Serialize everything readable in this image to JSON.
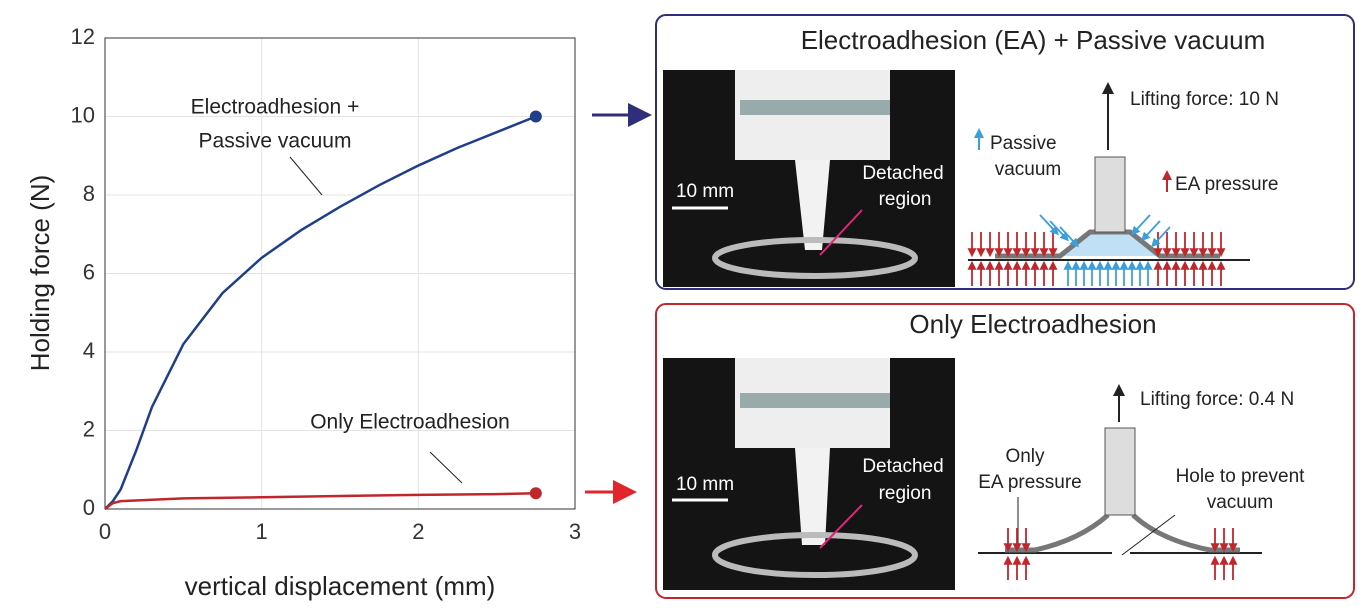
{
  "chart_data": {
    "type": "line",
    "xlabel": "vertical displacement (mm)",
    "ylabel": "Holding force (N)",
    "xlim": [
      0,
      3
    ],
    "ylim": [
      0,
      12
    ],
    "xticks": [
      0,
      1,
      2,
      3
    ],
    "yticks": [
      0,
      2,
      4,
      6,
      8,
      10,
      12
    ],
    "grid": true,
    "series": [
      {
        "name": "Electroadhesion + Passive vacuum",
        "label_lines": [
          "Electroadhesion +",
          "Passive vacuum"
        ],
        "color": "#1f3f8a",
        "x": [
          0,
          0.05,
          0.1,
          0.2,
          0.3,
          0.5,
          0.75,
          1,
          1.25,
          1.5,
          1.75,
          2,
          2.25,
          2.5,
          2.75
        ],
        "values": [
          0,
          0.2,
          0.5,
          1.5,
          2.6,
          4.2,
          5.5,
          6.4,
          7.1,
          7.7,
          8.25,
          8.75,
          9.2,
          9.6,
          10.0
        ]
      },
      {
        "name": "Only Electroadhesion",
        "label_lines": [
          "Only Electroadhesion"
        ],
        "color": "#c0272d",
        "x": [
          0,
          0.05,
          0.1,
          0.5,
          1,
          1.5,
          2,
          2.5,
          2.75
        ],
        "values": [
          0,
          0.15,
          0.2,
          0.27,
          0.3,
          0.33,
          0.36,
          0.38,
          0.4
        ]
      }
    ]
  },
  "panels": [
    {
      "title": "Electroadhesion (EA) + Passive vacuum",
      "scale": "10 mm",
      "photo_label": [
        "Detached",
        "region"
      ],
      "lifting": "Lifting force: 10 N",
      "vacuum": [
        "Passive",
        "vacuum"
      ],
      "pressure": "EA pressure"
    },
    {
      "title": "Only Electroadhesion",
      "scale": "10 mm",
      "photo_label": [
        "Detached",
        "region"
      ],
      "lifting": "Lifting force: 0.4 N",
      "pressure": [
        "Only",
        "EA pressure"
      ],
      "hole": [
        "Hole to prevent",
        "vacuum"
      ]
    }
  ]
}
